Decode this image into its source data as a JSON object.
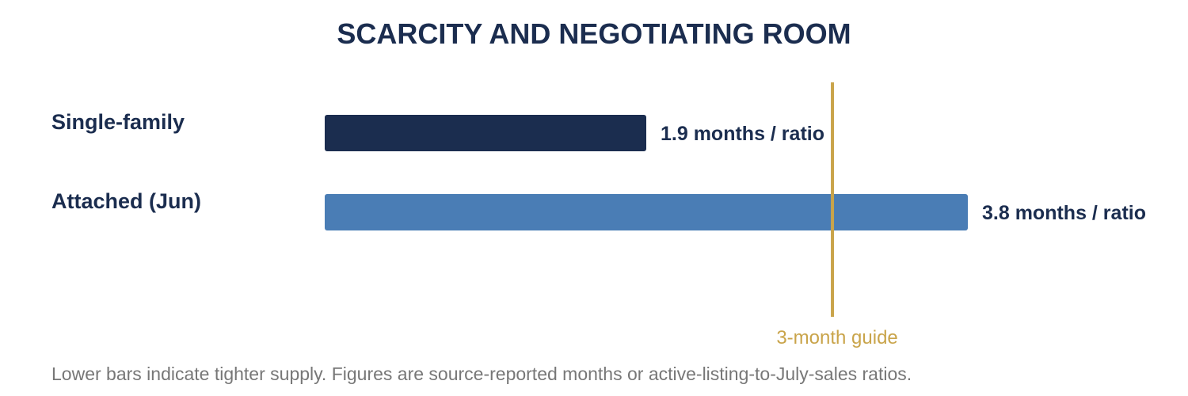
{
  "chart_data": {
    "type": "bar",
    "orientation": "horizontal",
    "title": "SCARCITY AND NEGOTIATING ROOM",
    "categories": [
      "Single-family",
      "Attached (Jun)"
    ],
    "values": [
      1.9,
      3.8
    ],
    "value_labels": [
      "1.9 months / ratio",
      "3.8 months / ratio"
    ],
    "colors": [
      "#1b2d4f",
      "#4a7db5"
    ],
    "xlim": [
      0,
      3.8
    ],
    "reference_line": {
      "value": 3,
      "label": "3-month guide",
      "color": "#c9a44a"
    },
    "grid": false,
    "note": "Lower bars indicate tighter supply. Figures are source-reported months or active-listing-to-July-sales ratios."
  }
}
